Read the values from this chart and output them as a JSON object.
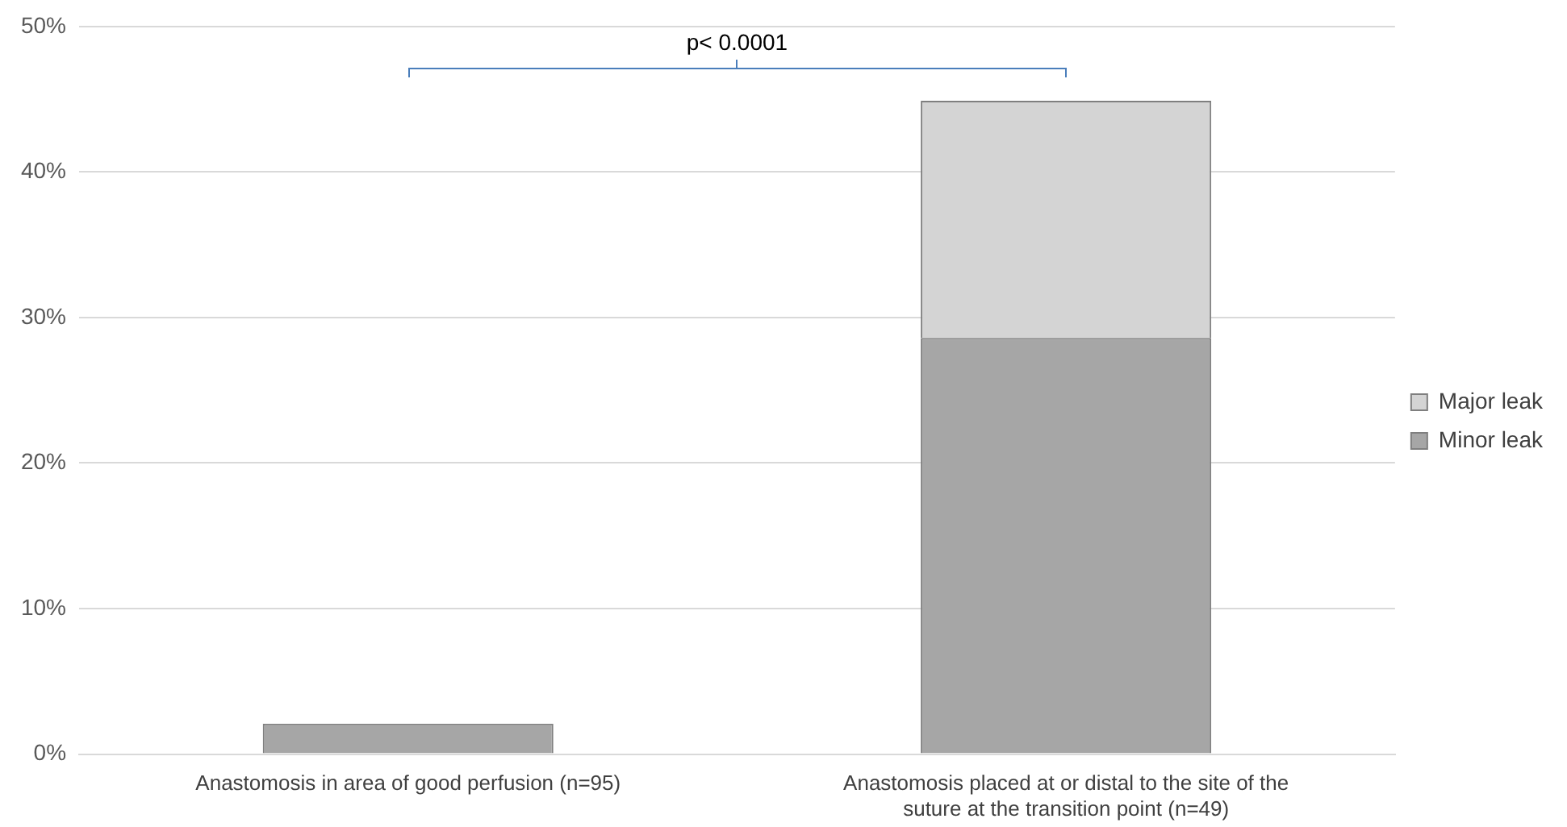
{
  "chart_data": {
    "type": "bar",
    "stacked": true,
    "categories": [
      "Anastomosis in area of good perfusion (n=95)",
      "Anastomosis placed at or distal to the site of the suture at the transition point (n=49)"
    ],
    "series": [
      {
        "name": "Minor leak",
        "color": "#a6a6a6",
        "values": [
          2.1,
          28.6
        ]
      },
      {
        "name": "Major leak",
        "color": "#d4d4d4",
        "values": [
          0,
          16.3
        ]
      }
    ],
    "ylim": [
      0,
      50
    ],
    "yticks": [
      {
        "value": 0,
        "label": "0%"
      },
      {
        "value": 10,
        "label": "10%"
      },
      {
        "value": 20,
        "label": "20%"
      },
      {
        "value": 30,
        "label": "30%"
      },
      {
        "value": 40,
        "label": "40%"
      },
      {
        "value": 50,
        "label": "50%"
      }
    ],
    "grid": "y",
    "legend": "right",
    "annotations": [
      "p< 0.0001"
    ]
  }
}
